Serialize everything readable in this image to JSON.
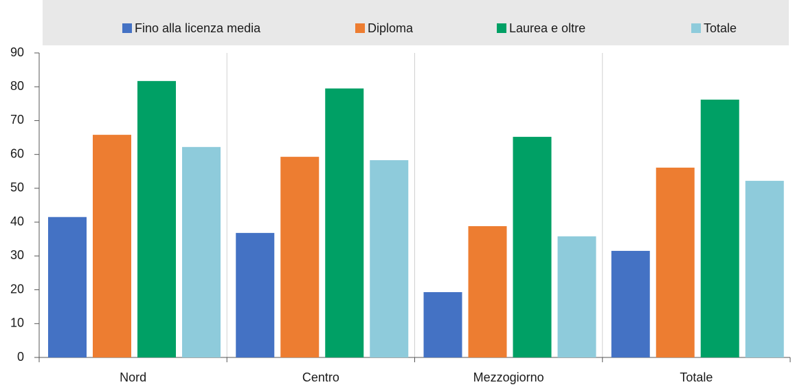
{
  "chart_data": {
    "type": "bar",
    "categories": [
      "Nord",
      "Centro",
      "Mezzogiorno",
      "Totale"
    ],
    "series": [
      {
        "name": "Fino alla licenza media",
        "color": "#4472c4",
        "values": [
          41.5,
          36.8,
          19.3,
          31.5
        ]
      },
      {
        "name": "Diploma",
        "color": "#ed7d31",
        "values": [
          65.8,
          59.3,
          38.8,
          56.1
        ]
      },
      {
        "name": "Laurea e oltre",
        "color": "#00a065",
        "values": [
          81.7,
          79.5,
          65.2,
          76.2
        ]
      },
      {
        "name": "Totale",
        "color": "#8ecbdb",
        "values": [
          62.2,
          58.3,
          35.8,
          52.2
        ]
      }
    ],
    "ylim": [
      0,
      90
    ],
    "yticks": [
      0,
      10,
      20,
      30,
      40,
      50,
      60,
      70,
      80,
      90
    ]
  }
}
